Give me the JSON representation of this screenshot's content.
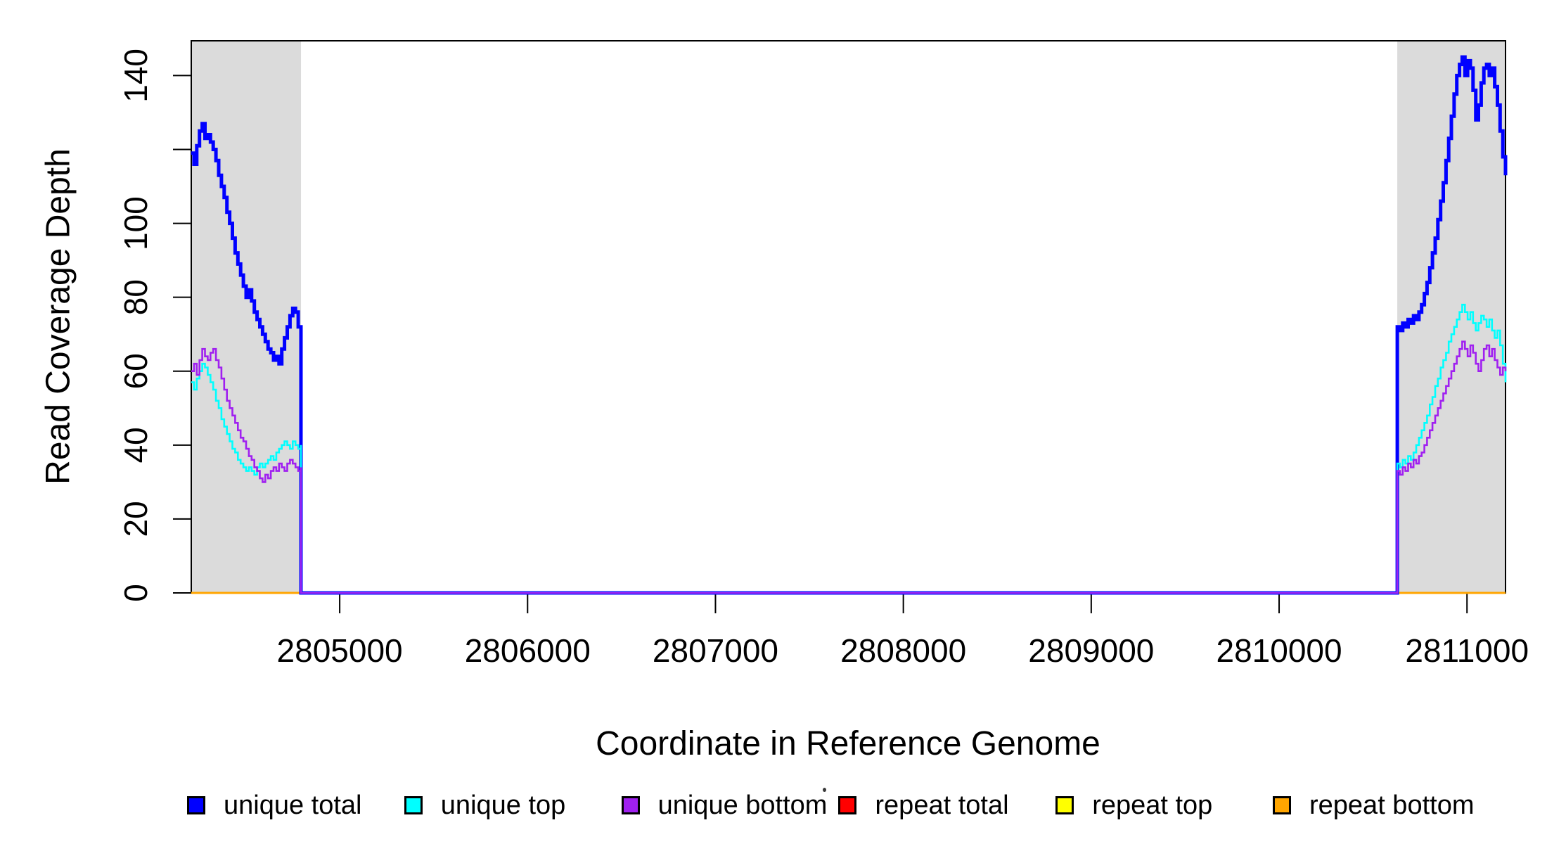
{
  "figure": {
    "background": "#ffffff",
    "plot_border_color": "#000000",
    "shade_color": "#dbdbdb"
  },
  "axes": {
    "x": {
      "label": "Coordinate in Reference Genome",
      "ticks": [
        {
          "v": 2805000,
          "label": "2805000"
        },
        {
          "v": 2806000,
          "label": "2806000"
        },
        {
          "v": 2807000,
          "label": "2807000"
        },
        {
          "v": 2808000,
          "label": "2808000"
        },
        {
          "v": 2809000,
          "label": "2809000"
        },
        {
          "v": 2810000,
          "label": "2810000"
        },
        {
          "v": 2811000,
          "label": "2811000"
        }
      ]
    },
    "y": {
      "label": "Read Coverage Depth",
      "ticks": [
        {
          "v": 0,
          "label": "0"
        },
        {
          "v": 20,
          "label": "20"
        },
        {
          "v": 40,
          "label": "40"
        },
        {
          "v": 60,
          "label": "60"
        },
        {
          "v": 80,
          "label": "80"
        },
        {
          "v": 100,
          "label": "100"
        },
        {
          "v": 120,
          "label": ""
        },
        {
          "v": 140,
          "label": "140"
        }
      ]
    }
  },
  "legend": {
    "items": [
      {
        "label": "unique total",
        "color": "#0000FF"
      },
      {
        "label": "unique top",
        "color": "#00FFFF"
      },
      {
        "label": "unique bottom",
        "color": "#A020F0"
      },
      {
        "label": "repeat total",
        "color": "#FF0000"
      },
      {
        "label": "repeat top",
        "color": "#FFFF00"
      },
      {
        "label": "repeat bottom",
        "color": "#FFA500"
      }
    ]
  },
  "chart_data": {
    "type": "line",
    "title": "",
    "xlabel": "Coordinate in Reference Genome",
    "ylabel": "Read Coverage Depth",
    "xlim": [
      2804210,
      2811205
    ],
    "ylim": [
      0,
      149.4
    ],
    "grid": false,
    "legend_position": "bottom",
    "step_interpolation": true,
    "shaded_regions": [
      [
        2804210,
        2804794
      ],
      [
        2810629,
        2811205
      ]
    ],
    "shade_color": "#dbdbdb",
    "series": [
      {
        "name": "repeat total",
        "color": "#FF0000",
        "width": 2.6,
        "segments": [
          {
            "x0": 2804210,
            "dx": 6995,
            "values": [
              0,
              0
            ]
          }
        ]
      },
      {
        "name": "repeat top",
        "color": "#FFFF00",
        "width": 2.6,
        "segments": [
          {
            "x0": 2804210,
            "dx": 6995,
            "values": [
              0,
              0
            ]
          }
        ]
      },
      {
        "name": "repeat bottom",
        "color": "#FFA500",
        "width": 3,
        "segments": [
          {
            "x0": 2804210,
            "dx": 6995,
            "values": [
              0,
              0
            ]
          }
        ]
      },
      {
        "name": "unique total",
        "color": "#0000FF",
        "width": 5,
        "segments": [
          {
            "x0": 2804210,
            "dx": 14.6,
            "values": [
              119,
              116,
              121,
              125,
              127,
              123,
              124,
              122,
              120,
              117,
              113,
              110,
              107,
              103,
              100,
              96,
              92,
              89,
              86,
              83,
              80,
              82,
              79,
              76,
              74,
              72,
              70,
              68,
              66,
              65,
              63,
              64,
              62,
              66,
              69,
              72,
              75,
              77,
              76,
              72,
              70
            ]
          },
          {
            "x0": 2804794,
            "dx": 0,
            "values": [
              0
            ]
          },
          {
            "x0": 2810629,
            "dx": 14.4,
            "values": [
              72,
              71,
              73,
              72,
              74,
              73,
              75,
              74,
              76,
              78,
              81,
              84,
              88,
              92,
              96,
              101,
              106,
              111,
              117,
              123,
              129,
              135,
              140,
              143,
              145,
              140,
              144,
              142,
              136,
              128,
              132,
              138,
              142,
              143,
              140,
              142,
              137,
              132,
              125,
              118,
              113
            ]
          }
        ]
      },
      {
        "name": "unique top",
        "color": "#00FFFF",
        "width": 2.6,
        "segments": [
          {
            "x0": 2804210,
            "dx": 14.6,
            "values": [
              57,
              55,
              58,
              60,
              62,
              61,
              59,
              57,
              55,
              52,
              50,
              47,
              45,
              43,
              41,
              39,
              38,
              36,
              35,
              34,
              33,
              34,
              33,
              32,
              34,
              35,
              34,
              35,
              36,
              37,
              36,
              38,
              39,
              40,
              41,
              40,
              39,
              41,
              40,
              39,
              40
            ]
          },
          {
            "x0": 2804794,
            "dx": 0,
            "values": [
              0
            ]
          },
          {
            "x0": 2810629,
            "dx": 14.4,
            "values": [
              35,
              34,
              36,
              35,
              37,
              36,
              38,
              40,
              42,
              44,
              46,
              48,
              51,
              53,
              56,
              58,
              61,
              63,
              65,
              68,
              70,
              72,
              74,
              76,
              78,
              76,
              74,
              76,
              73,
              71,
              73,
              75,
              74,
              72,
              74,
              71,
              69,
              71,
              67,
              62,
              57
            ]
          }
        ]
      },
      {
        "name": "unique bottom",
        "color": "#A020F0",
        "width": 2.6,
        "segments": [
          {
            "x0": 2804210,
            "dx": 14.6,
            "values": [
              60,
              62,
              59,
              63,
              66,
              64,
              63,
              65,
              66,
              63,
              61,
              58,
              55,
              52,
              50,
              48,
              46,
              44,
              42,
              41,
              39,
              37,
              36,
              34,
              33,
              31,
              30,
              32,
              31,
              33,
              34,
              33,
              35,
              34,
              33,
              35,
              36,
              35,
              34,
              33,
              34
            ]
          },
          {
            "x0": 2804794,
            "dx": 0,
            "values": [
              0
            ]
          },
          {
            "x0": 2810629,
            "dx": 14.4,
            "values": [
              33,
              32,
              34,
              33,
              35,
              34,
              36,
              35,
              37,
              38,
              40,
              42,
              44,
              46,
              48,
              50,
              52,
              54,
              56,
              58,
              60,
              62,
              64,
              66,
              68,
              66,
              64,
              67,
              65,
              62,
              60,
              63,
              66,
              67,
              64,
              66,
              63,
              61,
              59,
              61,
              60
            ]
          }
        ]
      }
    ]
  }
}
